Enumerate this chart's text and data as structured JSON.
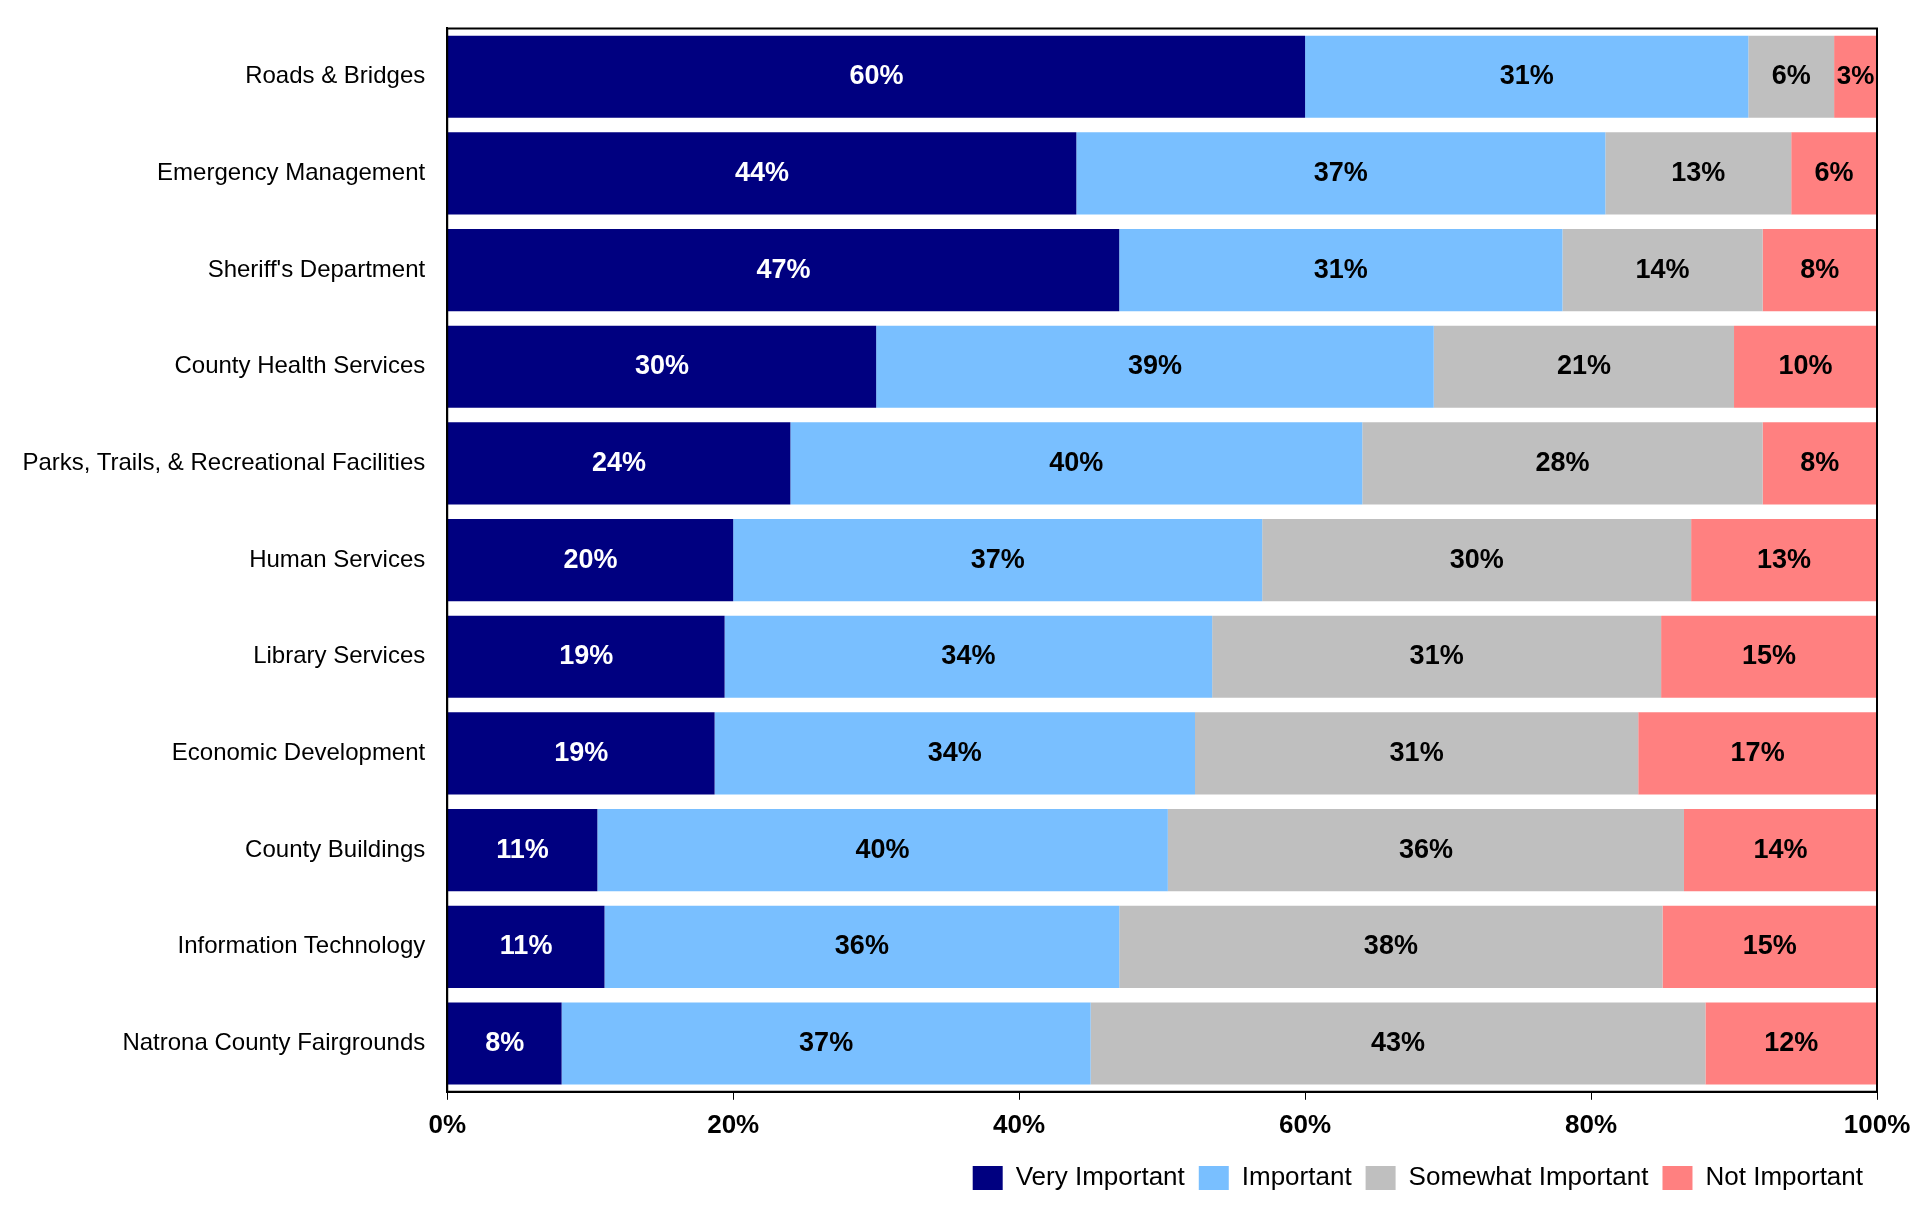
{
  "chart_data": {
    "type": "bar",
    "orientation": "horizontal",
    "stacked": true,
    "categories": [
      "Roads & Bridges",
      "Emergency Management",
      "Sheriff's Department",
      "County Health Services",
      "Parks, Trails, & Recreational Facilities",
      "Human Services",
      "Library Services",
      "Economic Development",
      "County Buildings",
      "Information Technology",
      "Natrona County Fairgrounds"
    ],
    "series": [
      {
        "name": "Very Important",
        "color": "#000080",
        "values": [
          60,
          44,
          47,
          30,
          24,
          20,
          19.4,
          18.7,
          10.5,
          11,
          8
        ],
        "value_labels": [
          "60%",
          "44%",
          "47%",
          "30%",
          "24%",
          "20%",
          "19%",
          "19%",
          "11%",
          "11%",
          "8%"
        ]
      },
      {
        "name": "Important",
        "color": "#79bfff",
        "values": [
          31,
          37,
          31,
          39,
          40,
          37,
          34.1,
          33.6,
          39.9,
          36,
          37
        ],
        "value_labels": [
          "31%",
          "37%",
          "31%",
          "39%",
          "40%",
          "37%",
          "34%",
          "34%",
          "40%",
          "36%",
          "37%"
        ]
      },
      {
        "name": "Somewhat Important",
        "color": "#bfbfbf",
        "values": [
          6,
          13,
          14,
          21,
          28,
          30,
          31.4,
          31,
          36.1,
          38,
          43
        ],
        "value_labels": [
          "6%",
          "13%",
          "14%",
          "21%",
          "28%",
          "30%",
          "31%",
          "31%",
          "36%",
          "38%",
          "43%"
        ]
      },
      {
        "name": "Not Important",
        "color": "#ff8080",
        "values": [
          3,
          6,
          8,
          10,
          8,
          13,
          15.1,
          16.7,
          13.5,
          15,
          12
        ],
        "value_labels": [
          "3%",
          "6%",
          "8%",
          "10%",
          "8%",
          "13%",
          "15%",
          "17%",
          "14%",
          "15%",
          "12%"
        ]
      }
    ],
    "xlim": [
      0,
      100
    ],
    "xticks": [
      {
        "value": 0,
        "label": "0%"
      },
      {
        "value": 20,
        "label": "20%"
      },
      {
        "value": 40,
        "label": "40%"
      },
      {
        "value": 60,
        "label": "60%"
      },
      {
        "value": 80,
        "label": "80%"
      },
      {
        "value": 100,
        "label": "100%"
      }
    ],
    "grid": false,
    "legend": "bottom right"
  }
}
